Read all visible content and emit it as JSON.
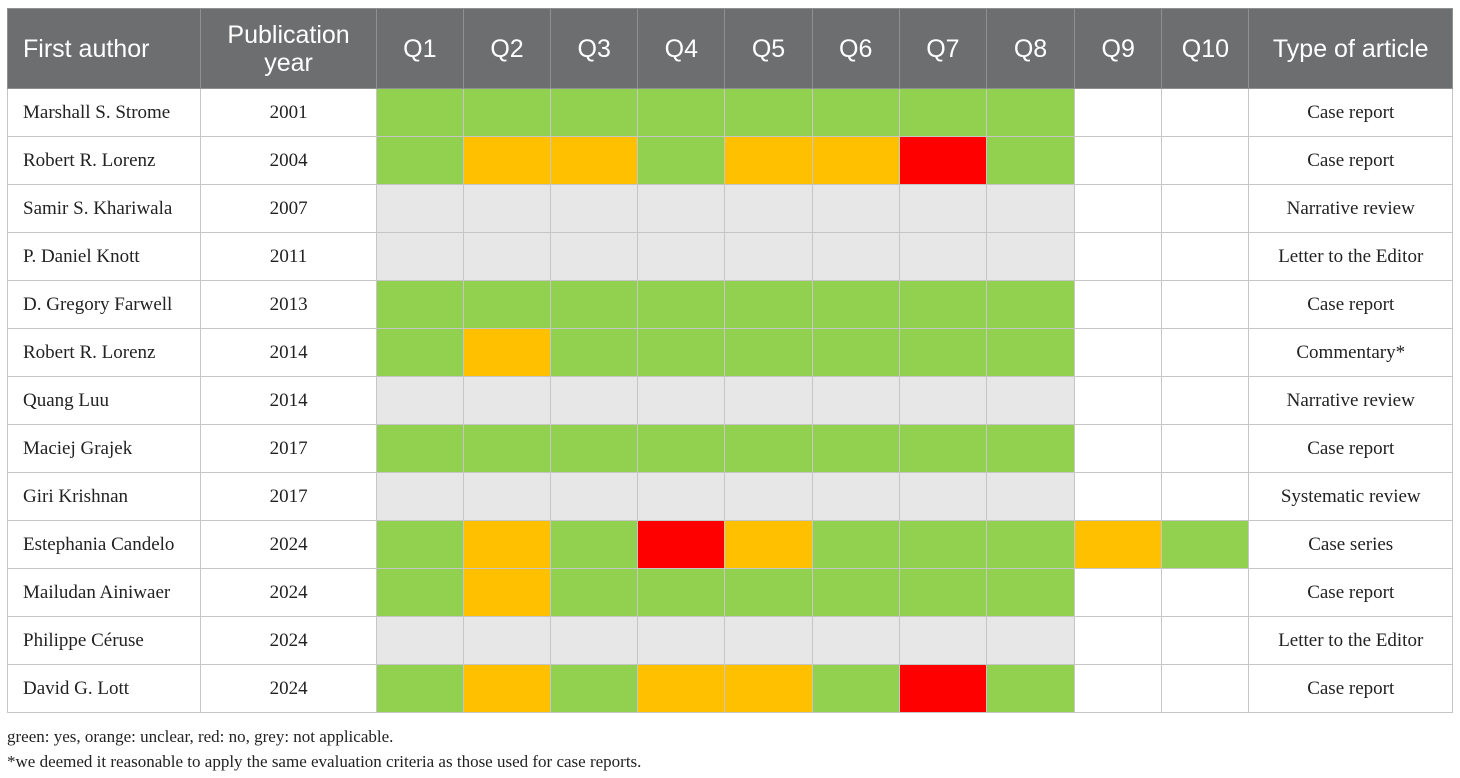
{
  "header": {
    "first_author": "First author",
    "year_line1": "Publication",
    "year_line2": "year",
    "questions": [
      "Q1",
      "Q2",
      "Q3",
      "Q4",
      "Q5",
      "Q6",
      "Q7",
      "Q8",
      "Q9",
      "Q10"
    ],
    "type": "Type of article"
  },
  "colors": {
    "G": "#92d050",
    "O": "#ffc000",
    "R": "#ff0000",
    "X": "#e7e7e7",
    "W": "#ffffff"
  },
  "rating_legend": {
    "G": "yes",
    "O": "unclear",
    "R": "no",
    "X": "not applicable",
    "W": "blank"
  },
  "rows": [
    {
      "author": "Marshall S. Strome",
      "year": "2001",
      "ratings": [
        "G",
        "G",
        "G",
        "G",
        "G",
        "G",
        "G",
        "G",
        "W",
        "W"
      ],
      "type": "Case report"
    },
    {
      "author": "Robert R. Lorenz",
      "year": "2004",
      "ratings": [
        "G",
        "O",
        "O",
        "G",
        "O",
        "O",
        "R",
        "G",
        "W",
        "W"
      ],
      "type": "Case report"
    },
    {
      "author": "Samir S. Khariwala",
      "year": "2007",
      "ratings": [
        "X",
        "X",
        "X",
        "X",
        "X",
        "X",
        "X",
        "X",
        "W",
        "W"
      ],
      "type": "Narrative review"
    },
    {
      "author": "P. Daniel Knott",
      "year": "2011",
      "ratings": [
        "X",
        "X",
        "X",
        "X",
        "X",
        "X",
        "X",
        "X",
        "W",
        "W"
      ],
      "type": "Letter to the Editor"
    },
    {
      "author": "D. Gregory Farwell",
      "year": "2013",
      "ratings": [
        "G",
        "G",
        "G",
        "G",
        "G",
        "G",
        "G",
        "G",
        "W",
        "W"
      ],
      "type": "Case report"
    },
    {
      "author": "Robert R. Lorenz",
      "year": "2014",
      "ratings": [
        "G",
        "O",
        "G",
        "G",
        "G",
        "G",
        "G",
        "G",
        "W",
        "W"
      ],
      "type": "Commentary*"
    },
    {
      "author": "Quang Luu",
      "year": "2014",
      "ratings": [
        "X",
        "X",
        "X",
        "X",
        "X",
        "X",
        "X",
        "X",
        "W",
        "W"
      ],
      "type": "Narrative review"
    },
    {
      "author": "Maciej Grajek",
      "year": "2017",
      "ratings": [
        "G",
        "G",
        "G",
        "G",
        "G",
        "G",
        "G",
        "G",
        "W",
        "W"
      ],
      "type": "Case report"
    },
    {
      "author": "Giri Krishnan",
      "year": "2017",
      "ratings": [
        "X",
        "X",
        "X",
        "X",
        "X",
        "X",
        "X",
        "X",
        "W",
        "W"
      ],
      "type": "Systematic review"
    },
    {
      "author": "Estephania Candelo",
      "year": "2024",
      "ratings": [
        "G",
        "O",
        "G",
        "R",
        "O",
        "G",
        "G",
        "G",
        "O",
        "G"
      ],
      "type": "Case series"
    },
    {
      "author": "Mailudan Ainiwaer",
      "year": "2024",
      "ratings": [
        "G",
        "O",
        "G",
        "G",
        "G",
        "G",
        "G",
        "G",
        "W",
        "W"
      ],
      "type": "Case report"
    },
    {
      "author": "Philippe Céruse",
      "year": "2024",
      "ratings": [
        "X",
        "X",
        "X",
        "X",
        "X",
        "X",
        "X",
        "X",
        "W",
        "W"
      ],
      "type": "Letter to the Editor"
    },
    {
      "author": "David G. Lott",
      "year": "2024",
      "ratings": [
        "G",
        "O",
        "G",
        "O",
        "O",
        "G",
        "R",
        "G",
        "W",
        "W"
      ],
      "type": "Case report"
    }
  ],
  "notes": {
    "legend": "green: yes, orange: unclear, red: no, grey: not applicable.",
    "footnote": "*we deemed it reasonable to apply the same evaluation criteria as those used for case reports."
  }
}
